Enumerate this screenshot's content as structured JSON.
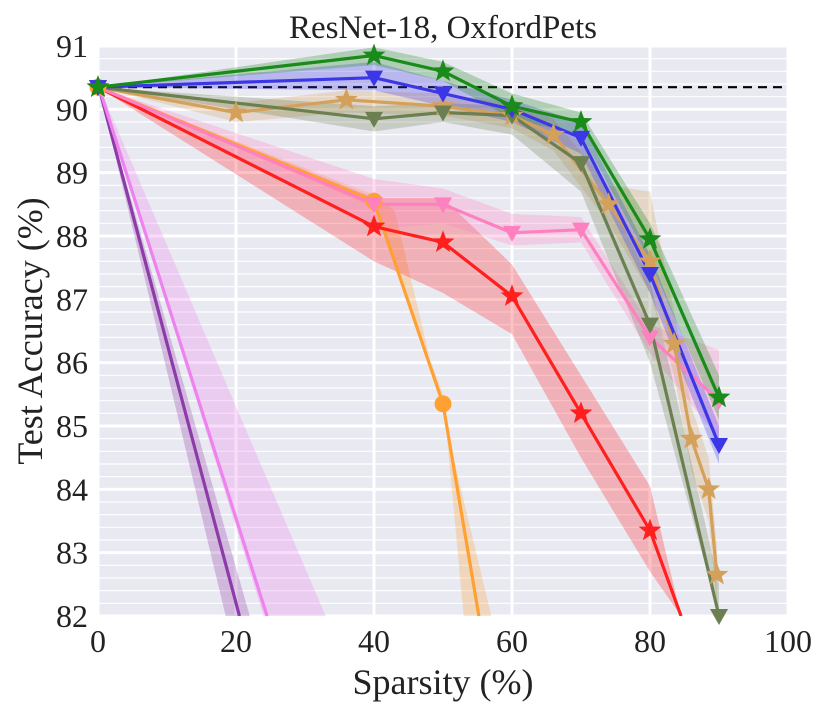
{
  "chart_data": {
    "type": "line",
    "title": "ResNet-18, OxfordPets",
    "xlabel": "Sparsity (%)",
    "ylabel": "Test Accuracy (%)",
    "xlim": [
      0,
      100
    ],
    "ylim": [
      82,
      91
    ],
    "xticks": [
      "0",
      "20",
      "40",
      "60",
      "80",
      "100"
    ],
    "yticks": [
      "82",
      "83",
      "84",
      "85",
      "86",
      "87",
      "88",
      "89",
      "90",
      "91"
    ],
    "grid": true,
    "dense_baseline": {
      "value": 90.35,
      "color": "#000000",
      "style": "dashed"
    },
    "series": [
      {
        "name": "purple",
        "color": "#8e3aa8",
        "marker": "none",
        "x": [
          0,
          20.5
        ],
        "y": [
          90.4,
          82.0
        ],
        "upper": [
          90.4,
          82.0
        ],
        "lower": [
          90.4,
          82.0
        ],
        "band": [
          [
            0,
            90.4
          ],
          [
            22,
            82
          ],
          [
            18.5,
            82
          ],
          [
            0,
            90.4
          ]
        ]
      },
      {
        "name": "violet",
        "color": "#ee82ee",
        "marker": "none",
        "x": [
          0,
          24.5
        ],
        "y": [
          90.4,
          82.0
        ],
        "band": [
          [
            0,
            90.4
          ],
          [
            33,
            82
          ],
          [
            24,
            82
          ],
          [
            0,
            90.4
          ]
        ]
      },
      {
        "name": "orange",
        "color": "#ffa033",
        "marker": "circle",
        "x": [
          0,
          40,
          50,
          55.2
        ],
        "y": [
          90.35,
          88.55,
          85.35,
          82.0
        ],
        "band": [
          [
            0,
            90.35
          ],
          [
            40,
            88.65
          ],
          [
            43,
            88.4
          ],
          [
            50,
            85.2
          ],
          [
            57,
            82
          ],
          [
            53,
            82
          ],
          [
            50,
            85.5
          ],
          [
            40,
            88.45
          ],
          [
            0,
            90.35
          ]
        ]
      },
      {
        "name": "red",
        "color": "#ff1f1f",
        "marker": "star",
        "x": [
          0,
          40,
          50,
          60,
          70,
          80,
          84.5
        ],
        "y": [
          90.35,
          88.15,
          87.9,
          87.05,
          85.2,
          83.35,
          82.0
        ],
        "band_upper": [
          90.35,
          88.6,
          88.6,
          87.55,
          85.8,
          84.05,
          82.0
        ],
        "band_lower": [
          90.35,
          87.6,
          87.1,
          86.45,
          84.5,
          82.7,
          82.0
        ]
      },
      {
        "name": "pink",
        "color": "#ff80c0",
        "marker": "triangle-down",
        "x": [
          0,
          40,
          50,
          60,
          70,
          80,
          90
        ],
        "y": [
          90.35,
          88.5,
          88.5,
          88.05,
          88.1,
          86.4,
          85.4
        ],
        "band_upper": [
          90.35,
          88.9,
          88.75,
          88.35,
          88.3,
          86.6,
          86.2
        ],
        "band_lower": [
          90.35,
          88.1,
          88.2,
          87.85,
          87.9,
          86.15,
          84.8
        ]
      },
      {
        "name": "tan",
        "color": "#d4a05a",
        "marker": "star",
        "x": [
          0,
          20,
          36,
          50,
          60,
          66,
          74,
          80,
          83.5,
          86,
          88.5,
          89.7
        ],
        "y": [
          90.35,
          89.95,
          90.15,
          90.05,
          89.9,
          89.6,
          88.5,
          87.6,
          86.3,
          84.8,
          84.0,
          82.65
        ],
        "band_upper": [
          90.35,
          90.1,
          90.3,
          90.25,
          90.1,
          89.85,
          88.8,
          88.7,
          86.8,
          85.3,
          84.5,
          83.1
        ],
        "band_lower": [
          90.35,
          89.8,
          89.95,
          89.9,
          89.7,
          89.35,
          88.2,
          87.1,
          85.8,
          84.3,
          83.5,
          82.2
        ]
      },
      {
        "name": "olive",
        "color": "#6b7f50",
        "marker": "triangle-down",
        "x": [
          0,
          40,
          50,
          60,
          70,
          80,
          90
        ],
        "y": [
          90.35,
          89.85,
          89.95,
          89.9,
          89.15,
          86.6,
          82.0
        ],
        "band_upper": [
          90.35,
          90.05,
          90.1,
          90.05,
          89.5,
          87.3,
          82.5
        ],
        "band_lower": [
          90.35,
          89.65,
          89.8,
          89.6,
          88.7,
          86.0,
          82.0
        ]
      },
      {
        "name": "blue",
        "color": "#3b36e6",
        "marker": "triangle-down",
        "x": [
          0,
          40,
          50,
          60,
          70,
          80,
          90
        ],
        "y": [
          90.35,
          90.5,
          90.25,
          90.0,
          89.55,
          87.4,
          84.7
        ],
        "band_upper": [
          90.35,
          90.75,
          90.45,
          90.15,
          89.8,
          87.7,
          85.0
        ],
        "band_lower": [
          90.35,
          90.3,
          90.05,
          89.8,
          89.3,
          87.1,
          84.4
        ]
      },
      {
        "name": "green",
        "color": "#1a8a1a",
        "marker": "star",
        "x": [
          0,
          40,
          50,
          60,
          70,
          80,
          90
        ],
        "y": [
          90.35,
          90.85,
          90.6,
          90.05,
          89.8,
          87.95,
          85.45
        ],
        "band_upper": [
          90.35,
          90.98,
          90.75,
          90.25,
          89.95,
          88.2,
          85.8
        ],
        "band_lower": [
          90.35,
          90.7,
          90.45,
          89.85,
          89.6,
          87.6,
          85.1
        ]
      }
    ]
  }
}
